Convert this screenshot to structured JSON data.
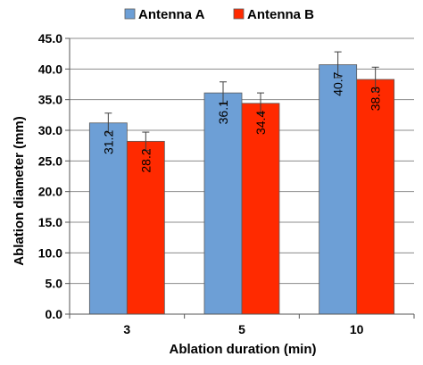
{
  "chart_data": {
    "type": "bar",
    "categories": [
      "3",
      "5",
      "10"
    ],
    "series": [
      {
        "name": "Antenna A",
        "values": [
          31.2,
          36.1,
          40.7
        ],
        "errors": [
          1.6,
          1.8,
          2.1
        ],
        "color": "#6d9fd6"
      },
      {
        "name": "Antenna B",
        "values": [
          28.2,
          34.4,
          38.3
        ],
        "errors": [
          1.5,
          1.7,
          2.0
        ],
        "color": "#ff2a00"
      }
    ],
    "data_labels": [
      [
        "31.2",
        "36.1",
        "40.7"
      ],
      [
        "28.2",
        "34.4",
        "38.3"
      ]
    ],
    "xlabel": "Ablation duration (min)",
    "ylabel": "Ablation diameter (mm)",
    "ylim": [
      0,
      45
    ],
    "yticks": [
      "0.0",
      "5.0",
      "10.0",
      "15.0",
      "20.0",
      "25.0",
      "30.0",
      "35.0",
      "40.0",
      "45.0"
    ],
    "grid": true,
    "legend": "top"
  }
}
